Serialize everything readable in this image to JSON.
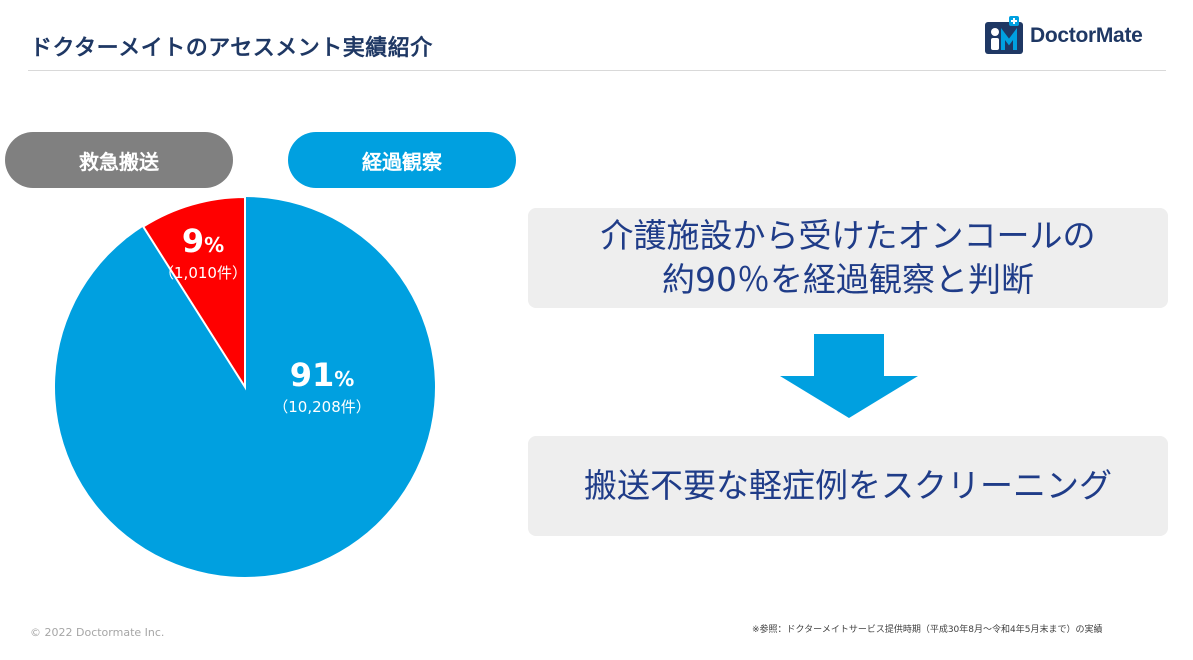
{
  "page": {
    "title": "ドクターメイトのアセスメント実績紹介",
    "logo_text": "DoctorMate",
    "footer_copyright": "© 2022 Doctormate Inc.",
    "footer_note": "※参照：ドクターメイトサービス提供時期（平成30年8月～令和4年5月末まで）の実績"
  },
  "legend": {
    "emergency": "救急搬送",
    "observation": "経過観察"
  },
  "chart_data": {
    "type": "pie",
    "title": "",
    "slices": [
      {
        "label": "経過観察",
        "percent": 91,
        "percent_label": "91",
        "percent_sign": "%",
        "count_label": "（10,208件）",
        "value": 10208,
        "color": "#00a0e0"
      },
      {
        "label": "救急搬送",
        "percent": 9,
        "percent_label": "9",
        "percent_sign": "%",
        "count_label": "（1,010件）",
        "value": 1010,
        "color": "#ff0000"
      }
    ],
    "start_angle_deg": 0,
    "direction": "clockwise",
    "legend_placement": "top-left"
  },
  "callouts": {
    "box1_line1": "介護施設から受けたオンコールの",
    "box1_line2": "約90％を経過観察と判断",
    "box2": "搬送不要な軽症例をスクリーニング"
  },
  "colors": {
    "title": "#1f3864",
    "emergency_slice": "#ff0000",
    "observation_slice": "#00a0e0",
    "emergency_pill": "#808080",
    "observation_pill": "#00a0e0",
    "callout_text": "#1f3c88",
    "arrow": "#00a0e0"
  },
  "icons": {
    "logo": "doctormate-logo-icon",
    "arrow": "down-arrow-icon"
  }
}
